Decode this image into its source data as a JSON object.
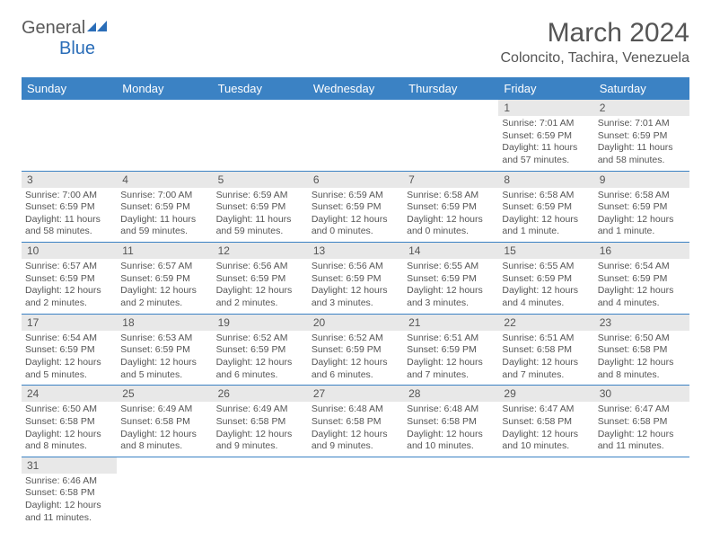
{
  "logo": {
    "general": "General",
    "blue": "Blue"
  },
  "header": {
    "title": "March 2024",
    "location": "Coloncito, Tachira, Venezuela"
  },
  "colors": {
    "header_bg": "#3b82c4",
    "header_text": "#ffffff",
    "daynum_bg": "#e8e8e8",
    "text": "#555555",
    "row_border": "#3b82c4"
  },
  "daynames": [
    "Sunday",
    "Monday",
    "Tuesday",
    "Wednesday",
    "Thursday",
    "Friday",
    "Saturday"
  ],
  "weeks": [
    [
      null,
      null,
      null,
      null,
      null,
      {
        "n": "1",
        "sr": "Sunrise: 7:01 AM",
        "ss": "Sunset: 6:59 PM",
        "dl": "Daylight: 11 hours and 57 minutes."
      },
      {
        "n": "2",
        "sr": "Sunrise: 7:01 AM",
        "ss": "Sunset: 6:59 PM",
        "dl": "Daylight: 11 hours and 58 minutes."
      }
    ],
    [
      {
        "n": "3",
        "sr": "Sunrise: 7:00 AM",
        "ss": "Sunset: 6:59 PM",
        "dl": "Daylight: 11 hours and 58 minutes."
      },
      {
        "n": "4",
        "sr": "Sunrise: 7:00 AM",
        "ss": "Sunset: 6:59 PM",
        "dl": "Daylight: 11 hours and 59 minutes."
      },
      {
        "n": "5",
        "sr": "Sunrise: 6:59 AM",
        "ss": "Sunset: 6:59 PM",
        "dl": "Daylight: 11 hours and 59 minutes."
      },
      {
        "n": "6",
        "sr": "Sunrise: 6:59 AM",
        "ss": "Sunset: 6:59 PM",
        "dl": "Daylight: 12 hours and 0 minutes."
      },
      {
        "n": "7",
        "sr": "Sunrise: 6:58 AM",
        "ss": "Sunset: 6:59 PM",
        "dl": "Daylight: 12 hours and 0 minutes."
      },
      {
        "n": "8",
        "sr": "Sunrise: 6:58 AM",
        "ss": "Sunset: 6:59 PM",
        "dl": "Daylight: 12 hours and 1 minute."
      },
      {
        "n": "9",
        "sr": "Sunrise: 6:58 AM",
        "ss": "Sunset: 6:59 PM",
        "dl": "Daylight: 12 hours and 1 minute."
      }
    ],
    [
      {
        "n": "10",
        "sr": "Sunrise: 6:57 AM",
        "ss": "Sunset: 6:59 PM",
        "dl": "Daylight: 12 hours and 2 minutes."
      },
      {
        "n": "11",
        "sr": "Sunrise: 6:57 AM",
        "ss": "Sunset: 6:59 PM",
        "dl": "Daylight: 12 hours and 2 minutes."
      },
      {
        "n": "12",
        "sr": "Sunrise: 6:56 AM",
        "ss": "Sunset: 6:59 PM",
        "dl": "Daylight: 12 hours and 2 minutes."
      },
      {
        "n": "13",
        "sr": "Sunrise: 6:56 AM",
        "ss": "Sunset: 6:59 PM",
        "dl": "Daylight: 12 hours and 3 minutes."
      },
      {
        "n": "14",
        "sr": "Sunrise: 6:55 AM",
        "ss": "Sunset: 6:59 PM",
        "dl": "Daylight: 12 hours and 3 minutes."
      },
      {
        "n": "15",
        "sr": "Sunrise: 6:55 AM",
        "ss": "Sunset: 6:59 PM",
        "dl": "Daylight: 12 hours and 4 minutes."
      },
      {
        "n": "16",
        "sr": "Sunrise: 6:54 AM",
        "ss": "Sunset: 6:59 PM",
        "dl": "Daylight: 12 hours and 4 minutes."
      }
    ],
    [
      {
        "n": "17",
        "sr": "Sunrise: 6:54 AM",
        "ss": "Sunset: 6:59 PM",
        "dl": "Daylight: 12 hours and 5 minutes."
      },
      {
        "n": "18",
        "sr": "Sunrise: 6:53 AM",
        "ss": "Sunset: 6:59 PM",
        "dl": "Daylight: 12 hours and 5 minutes."
      },
      {
        "n": "19",
        "sr": "Sunrise: 6:52 AM",
        "ss": "Sunset: 6:59 PM",
        "dl": "Daylight: 12 hours and 6 minutes."
      },
      {
        "n": "20",
        "sr": "Sunrise: 6:52 AM",
        "ss": "Sunset: 6:59 PM",
        "dl": "Daylight: 12 hours and 6 minutes."
      },
      {
        "n": "21",
        "sr": "Sunrise: 6:51 AM",
        "ss": "Sunset: 6:59 PM",
        "dl": "Daylight: 12 hours and 7 minutes."
      },
      {
        "n": "22",
        "sr": "Sunrise: 6:51 AM",
        "ss": "Sunset: 6:58 PM",
        "dl": "Daylight: 12 hours and 7 minutes."
      },
      {
        "n": "23",
        "sr": "Sunrise: 6:50 AM",
        "ss": "Sunset: 6:58 PM",
        "dl": "Daylight: 12 hours and 8 minutes."
      }
    ],
    [
      {
        "n": "24",
        "sr": "Sunrise: 6:50 AM",
        "ss": "Sunset: 6:58 PM",
        "dl": "Daylight: 12 hours and 8 minutes."
      },
      {
        "n": "25",
        "sr": "Sunrise: 6:49 AM",
        "ss": "Sunset: 6:58 PM",
        "dl": "Daylight: 12 hours and 8 minutes."
      },
      {
        "n": "26",
        "sr": "Sunrise: 6:49 AM",
        "ss": "Sunset: 6:58 PM",
        "dl": "Daylight: 12 hours and 9 minutes."
      },
      {
        "n": "27",
        "sr": "Sunrise: 6:48 AM",
        "ss": "Sunset: 6:58 PM",
        "dl": "Daylight: 12 hours and 9 minutes."
      },
      {
        "n": "28",
        "sr": "Sunrise: 6:48 AM",
        "ss": "Sunset: 6:58 PM",
        "dl": "Daylight: 12 hours and 10 minutes."
      },
      {
        "n": "29",
        "sr": "Sunrise: 6:47 AM",
        "ss": "Sunset: 6:58 PM",
        "dl": "Daylight: 12 hours and 10 minutes."
      },
      {
        "n": "30",
        "sr": "Sunrise: 6:47 AM",
        "ss": "Sunset: 6:58 PM",
        "dl": "Daylight: 12 hours and 11 minutes."
      }
    ],
    [
      {
        "n": "31",
        "sr": "Sunrise: 6:46 AM",
        "ss": "Sunset: 6:58 PM",
        "dl": "Daylight: 12 hours and 11 minutes."
      },
      null,
      null,
      null,
      null,
      null,
      null
    ]
  ]
}
